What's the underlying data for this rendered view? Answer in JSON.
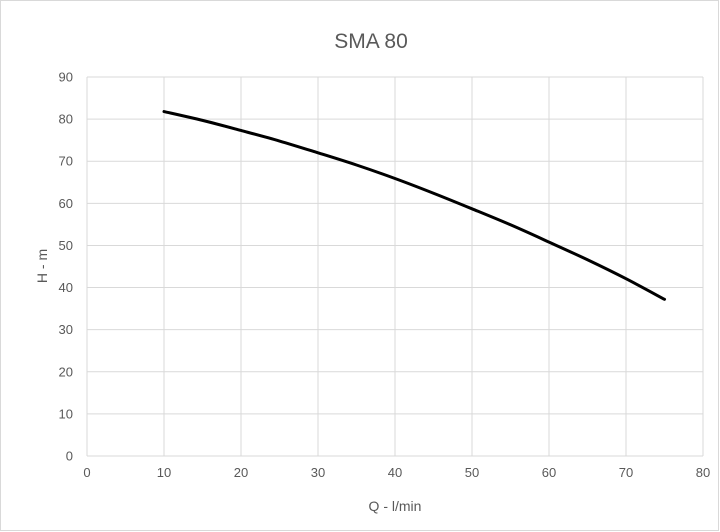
{
  "chart_data": {
    "type": "line",
    "title": "SMA 80",
    "xlabel": "Q - l/min",
    "ylabel": "H - m",
    "xlim": [
      0,
      80
    ],
    "ylim": [
      0,
      90
    ],
    "xticks": [
      0,
      10,
      20,
      30,
      40,
      50,
      60,
      70,
      80
    ],
    "yticks": [
      0,
      10,
      20,
      30,
      40,
      50,
      60,
      70,
      80,
      90
    ],
    "grid": true,
    "legend": "none",
    "series": [
      {
        "color": "#000000",
        "x": [
          10,
          15,
          20,
          25,
          30,
          35,
          40,
          45,
          50,
          55,
          60,
          65,
          70,
          75
        ],
        "y": [
          81.8,
          79.7,
          77.3,
          74.8,
          72.0,
          69.1,
          65.9,
          62.4,
          58.7,
          54.9,
          50.8,
          46.6,
          42.1,
          37.2
        ]
      }
    ]
  },
  "colors": {
    "gridline": "#d9d9d9",
    "axis_text": "#595959",
    "line": "#000000"
  }
}
